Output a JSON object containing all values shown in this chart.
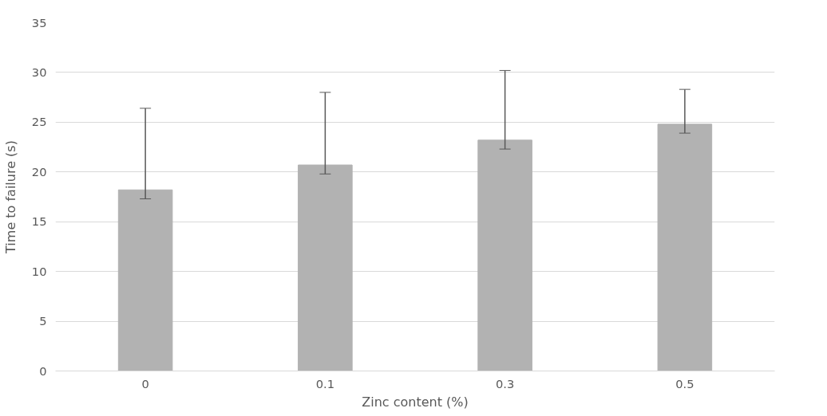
{
  "chart_data": {
    "type": "bar",
    "xlabel": "Zinc content (%)",
    "ylabel": "Time to failure (s)",
    "categories": [
      "0",
      "0.1",
      "0.3",
      "0.5"
    ],
    "values": [
      18.2,
      20.7,
      23.2,
      24.8
    ],
    "errors": [
      [
        17.3,
        26.4
      ],
      [
        19.8,
        28.0
      ],
      [
        22.3,
        30.2
      ],
      [
        23.9,
        28.3
      ]
    ],
    "color": "#b2b2b2",
    "ylim": [
      0,
      35
    ],
    "yticks": [
      0,
      5,
      10,
      15,
      20,
      25,
      30,
      35
    ],
    "grid": "y"
  }
}
